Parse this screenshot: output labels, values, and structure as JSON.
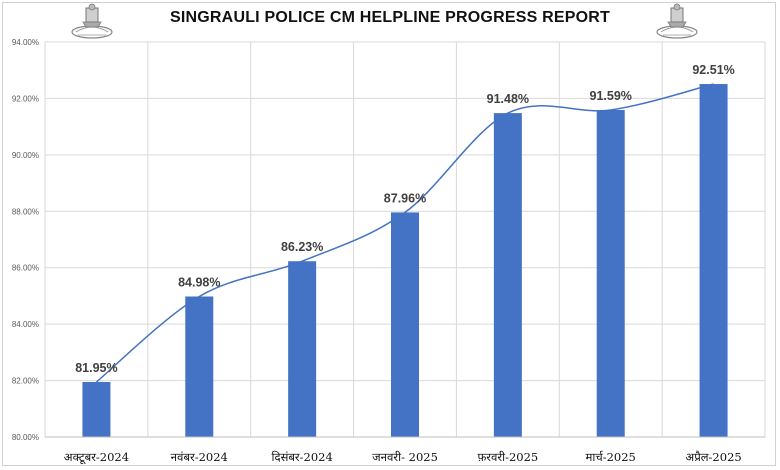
{
  "chart_data": {
    "type": "bar",
    "title": "SINGRAULI POLICE CM HELPLINE PROGRESS REPORT",
    "categories": [
      "अक्टूबर-2024",
      "नवंबर-2024",
      "दिसंबर-2024",
      "जनवरी- 2025",
      "फ़रवरी-2025",
      "मार्च-2025",
      "अप्रैल-2025"
    ],
    "values": [
      81.95,
      84.98,
      86.23,
      87.96,
      91.48,
      91.59,
      92.51
    ],
    "data_labels": [
      "81.95%",
      "84.98%",
      "86.23%",
      "87.96%",
      "91.48%",
      "91.59%",
      "92.51%"
    ],
    "yticks": [
      "80.00%",
      "82.00%",
      "84.00%",
      "86.00%",
      "88.00%",
      "90.00%",
      "92.00%",
      "94.00%"
    ],
    "ylim": [
      80,
      94
    ],
    "trendline": "smooth",
    "grid": true,
    "bar_color": "#4472c4",
    "line_color": "#4472c4"
  },
  "header": {
    "left_emblem": "police-emblem-icon",
    "right_emblem": "police-emblem-icon"
  }
}
